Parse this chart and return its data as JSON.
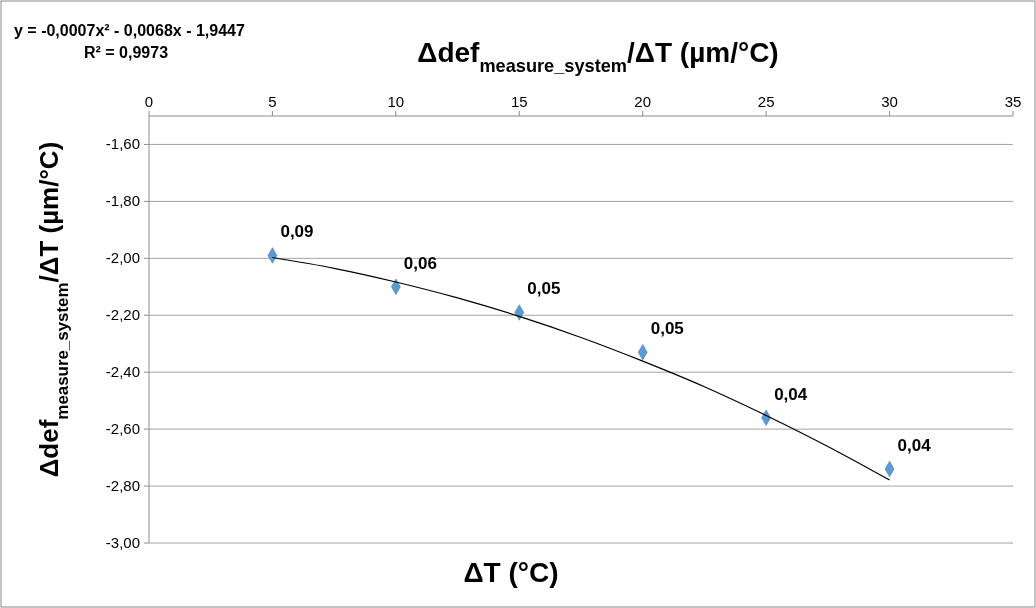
{
  "chart_data": {
    "type": "scatter",
    "title": "Δdef$_{measure_system}$/ΔT (µm/°C)",
    "xlabel": "ΔT (°C)",
    "ylabel": "Δdef$_{measure_system}$/ΔT (µm/°C)",
    "annotations": [
      "y = -0,0007x² - 0,0068x - 1,9447",
      "R² = 0,9973",
      {
        "text": "0,09",
        "x": 5,
        "y": -1.99
      },
      {
        "text": "0,06",
        "x": 10,
        "y": -2.1
      },
      {
        "text": "0,05",
        "x": 15,
        "y": -2.19
      },
      {
        "text": "0,05",
        "x": 20,
        "y": -2.33
      },
      {
        "text": "0,04",
        "x": 25,
        "y": -2.56
      },
      {
        "text": "0,04",
        "x": 30,
        "y": -2.74
      }
    ],
    "xlim": [
      0,
      35
    ],
    "xticks": [
      0,
      5,
      10,
      15,
      20,
      25,
      30,
      35
    ],
    "ylim": [
      -3.0,
      -1.5
    ],
    "yticks": [
      {
        "value": -1.6,
        "label": "-1,60"
      },
      {
        "value": -1.8,
        "label": "-1,80"
      },
      {
        "value": -2.0,
        "label": "-2,00"
      },
      {
        "value": -2.2,
        "label": "-2,20"
      },
      {
        "value": -2.4,
        "label": "-2,40"
      },
      {
        "value": -2.6,
        "label": "-2,60"
      },
      {
        "value": -2.8,
        "label": "-2,80"
      },
      {
        "value": -3.0,
        "label": "-3,00"
      }
    ],
    "grid": "y",
    "series": [
      {
        "color": "#5b9bd5",
        "marker": "diamond",
        "x": [
          5,
          10,
          15,
          20,
          25,
          30
        ],
        "values": [
          -1.99,
          -2.1,
          -2.19,
          -2.33,
          -2.56,
          -2.74
        ]
      },
      {
        "type": "line",
        "color": "#000000",
        "marker": "none",
        "line_style": "solid",
        "x": [
          5,
          7.5,
          10,
          12.5,
          15,
          17.5,
          20,
          22.5,
          25,
          27.5,
          30
        ],
        "values": [
          -1.997,
          -2.035,
          -2.083,
          -2.139,
          -2.204,
          -2.278,
          -2.361,
          -2.451,
          -2.552,
          -2.661,
          -2.779
        ]
      }
    ]
  }
}
